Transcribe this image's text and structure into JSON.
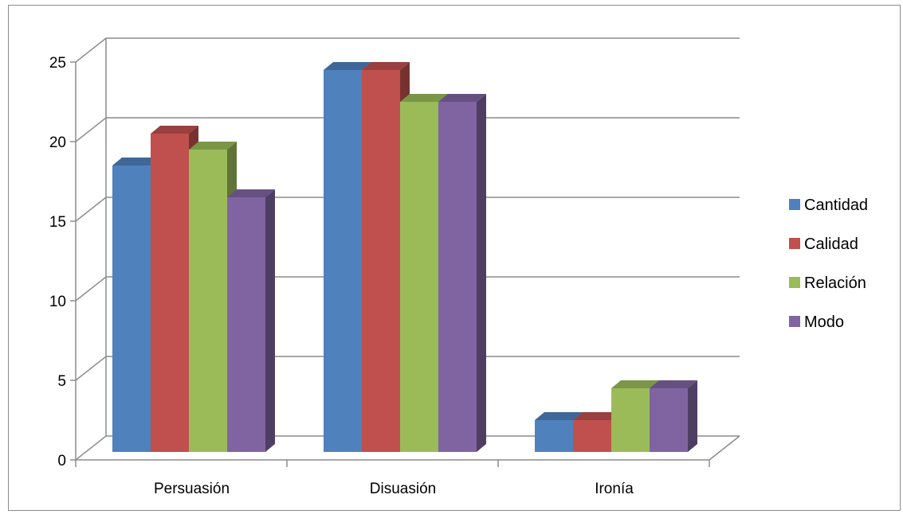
{
  "chart_data": {
    "type": "bar",
    "categories": [
      "Persuasión",
      "Disuasión",
      "Ironía"
    ],
    "series": [
      {
        "name": "Cantidad",
        "values": [
          18,
          24,
          2
        ],
        "color": "#4f81bd"
      },
      {
        "name": "Calidad",
        "values": [
          20,
          24,
          2
        ],
        "color": "#c0504d"
      },
      {
        "name": "Relación",
        "values": [
          19,
          22,
          4
        ],
        "color": "#9bbb59"
      },
      {
        "name": "Modo",
        "values": [
          16,
          22,
          4
        ],
        "color": "#8064a2"
      }
    ],
    "yticks": [
      "0",
      "5",
      "10",
      "15",
      "20",
      "25"
    ],
    "ylim": [
      0,
      25
    ],
    "grid": true,
    "legend_position": "right",
    "style": "3d-clustered-column"
  }
}
